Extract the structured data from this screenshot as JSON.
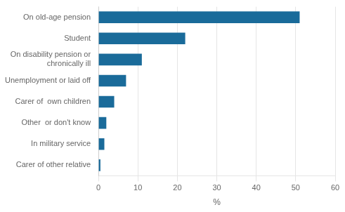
{
  "chart_data": {
    "type": "bar",
    "orientation": "horizontal",
    "categories": [
      "Carer of other relative",
      "In military service",
      "Other  or don't know",
      "Carer of  own children",
      "Unemployment or laid off",
      "On disability pension or\nchronically ill",
      "Student",
      "On old-age pension"
    ],
    "values": [
      0.5,
      1.5,
      2.0,
      4.0,
      7.0,
      11.0,
      22.0,
      51.0
    ],
    "color": "#1a6b9a",
    "xlabel": "%",
    "xlim": [
      0,
      60
    ],
    "xticks": [
      0,
      10,
      20,
      30,
      40,
      50,
      60
    ],
    "grid": true
  }
}
